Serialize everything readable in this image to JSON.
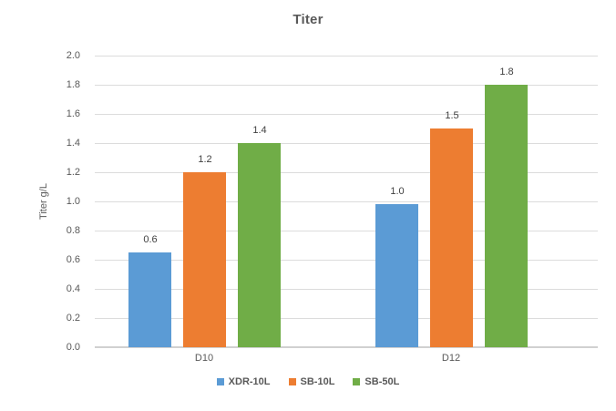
{
  "chart": {
    "title": "Titer",
    "ylabel": "Titer g/L"
  },
  "chart_data": {
    "type": "bar",
    "title": "Titer",
    "xlabel": "",
    "ylabel": "Titer g/L",
    "categories": [
      "D10",
      "D12"
    ],
    "series": [
      {
        "name": "XDR-10L",
        "color": "#5B9BD5",
        "values": [
          0.6,
          1.0
        ],
        "values_rendered": [
          0.65,
          0.98
        ],
        "data_labels": [
          "0.6",
          "1.0"
        ]
      },
      {
        "name": "SB-10L",
        "color": "#ED7D31",
        "values": [
          1.2,
          1.5
        ],
        "values_rendered": [
          1.2,
          1.5
        ],
        "data_labels": [
          "1.2",
          "1.5"
        ]
      },
      {
        "name": "SB-50L",
        "color": "#70AD47",
        "values": [
          1.4,
          1.8
        ],
        "values_rendered": [
          1.4,
          1.8
        ],
        "data_labels": [
          "1.4",
          "1.8"
        ]
      }
    ],
    "ylim": [
      0,
      2.0
    ],
    "ytick_step": 0.2,
    "yticks": [
      "0.0",
      "0.2",
      "0.4",
      "0.6",
      "0.8",
      "1.0",
      "1.2",
      "1.4",
      "1.6",
      "1.8",
      "2.0"
    ],
    "grid": true,
    "legend_position": "bottom",
    "legend": [
      "XDR-10L",
      "SB-10L",
      "SB-50L"
    ]
  },
  "colors": {
    "background": "#FFFFFF",
    "title_text": "#595959",
    "axis_text": "#595959",
    "data_label_text": "#404040",
    "gridline": "#DCDCDC",
    "axis_line": "#D0D0D0",
    "series_blue": "#5B9BD5",
    "series_orange": "#ED7D31",
    "series_green": "#70AD47"
  }
}
